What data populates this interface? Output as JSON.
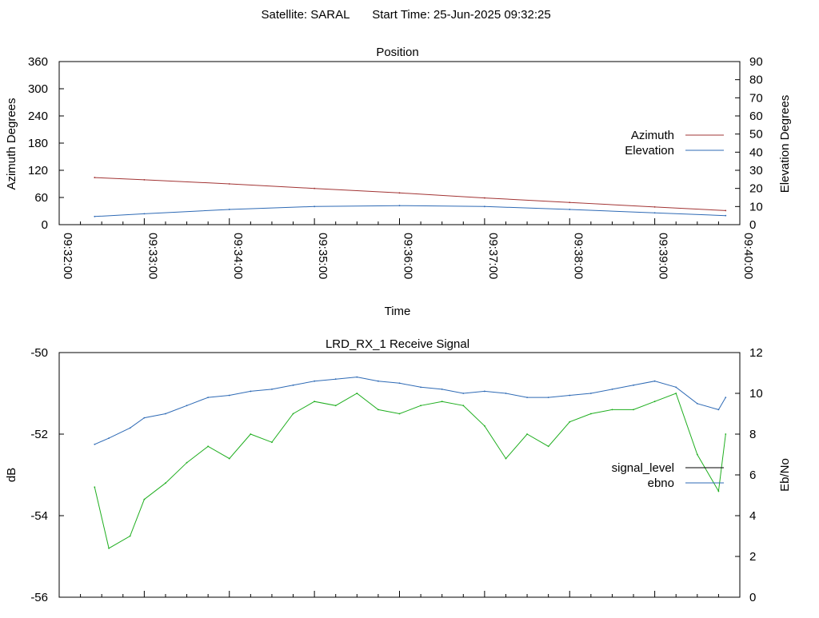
{
  "header": {
    "satellite_label": "Satellite: SARAL",
    "start_time_label": "Start Time: 25-Jun-2025 09:32:25"
  },
  "colors": {
    "azimuth": "#a23434",
    "elevation": "#2e6ab5",
    "signal_level": "#1fae1f",
    "ebno": "#2e6ab5",
    "axis": "#000000"
  },
  "chart_data": [
    {
      "id": "position",
      "type": "line",
      "title": "Position",
      "xlabel": "Time",
      "ylabel": "Azimuth Degrees",
      "y2label": "Elevation Degrees",
      "xlim": [
        "09:32:00",
        "09:40:00"
      ],
      "ylim": [
        0,
        360
      ],
      "y2lim": [
        0,
        90
      ],
      "x_ticks": [
        "09:32:00",
        "09:33:00",
        "09:34:00",
        "09:35:00",
        "09:36:00",
        "09:37:00",
        "09:38:00",
        "09:39:00",
        "09:40:00"
      ],
      "y_ticks": [
        0,
        60,
        120,
        180,
        240,
        300,
        360
      ],
      "y2_ticks": [
        0,
        10,
        20,
        30,
        40,
        50,
        60,
        70,
        80,
        90
      ],
      "legend_position": "right",
      "series": [
        {
          "name": "Azimuth",
          "axis": "y",
          "x": [
            "09:32:25",
            "09:33:00",
            "09:34:00",
            "09:35:00",
            "09:36:00",
            "09:37:00",
            "09:38:00",
            "09:39:00",
            "09:39:50"
          ],
          "values": [
            104,
            99,
            90,
            80,
            70,
            59,
            49,
            39,
            31
          ]
        },
        {
          "name": "Elevation",
          "axis": "y2",
          "x": [
            "09:32:25",
            "09:33:00",
            "09:34:00",
            "09:35:00",
            "09:36:00",
            "09:37:00",
            "09:38:00",
            "09:39:00",
            "09:39:50"
          ],
          "values": [
            4.5,
            6.0,
            8.4,
            10.0,
            10.5,
            10.0,
            8.4,
            6.5,
            5.0
          ]
        }
      ]
    },
    {
      "id": "signal",
      "type": "line",
      "title": "LRD_RX_1 Receive Signal",
      "xlabel": "",
      "ylabel": "dB",
      "y2label": "Eb/No",
      "xlim": [
        "09:32:00",
        "09:40:00"
      ],
      "ylim": [
        -56,
        -50
      ],
      "y2lim": [
        0,
        12
      ],
      "y_ticks": [
        -56,
        -54,
        -52,
        -50
      ],
      "y2_ticks": [
        0,
        2,
        4,
        6,
        8,
        10,
        12
      ],
      "legend_position": "right",
      "series": [
        {
          "name": "signal_level",
          "axis": "y",
          "x": [
            "09:32:25",
            "09:32:35",
            "09:32:50",
            "09:33:00",
            "09:33:15",
            "09:33:30",
            "09:33:45",
            "09:34:00",
            "09:34:15",
            "09:34:30",
            "09:34:45",
            "09:35:00",
            "09:35:15",
            "09:35:30",
            "09:35:45",
            "09:36:00",
            "09:36:15",
            "09:36:30",
            "09:36:45",
            "09:37:00",
            "09:37:15",
            "09:37:30",
            "09:37:45",
            "09:38:00",
            "09:38:15",
            "09:38:30",
            "09:38:45",
            "09:39:00",
            "09:39:15",
            "09:39:30",
            "09:39:45",
            "09:39:50"
          ],
          "values": [
            -53.3,
            -54.8,
            -54.5,
            -53.6,
            -53.2,
            -52.7,
            -52.3,
            -52.6,
            -52.0,
            -52.2,
            -51.5,
            -51.2,
            -51.3,
            -51.0,
            -51.4,
            -51.5,
            -51.3,
            -51.2,
            -51.3,
            -51.8,
            -52.6,
            -52.0,
            -52.3,
            -51.7,
            -51.5,
            -51.4,
            -51.4,
            -51.2,
            -51.0,
            -52.5,
            -53.4,
            -52.0
          ]
        },
        {
          "name": "ebno",
          "axis": "y2",
          "x": [
            "09:32:25",
            "09:32:35",
            "09:32:50",
            "09:33:00",
            "09:33:15",
            "09:33:30",
            "09:33:45",
            "09:34:00",
            "09:34:15",
            "09:34:30",
            "09:34:45",
            "09:35:00",
            "09:35:15",
            "09:35:30",
            "09:35:45",
            "09:36:00",
            "09:36:15",
            "09:36:30",
            "09:36:45",
            "09:37:00",
            "09:37:15",
            "09:37:30",
            "09:37:45",
            "09:38:00",
            "09:38:15",
            "09:38:30",
            "09:38:45",
            "09:39:00",
            "09:39:15",
            "09:39:30",
            "09:39:45",
            "09:39:50"
          ],
          "values": [
            7.5,
            7.8,
            8.3,
            8.8,
            9.0,
            9.4,
            9.8,
            9.9,
            10.1,
            10.2,
            10.4,
            10.6,
            10.7,
            10.8,
            10.6,
            10.5,
            10.3,
            10.2,
            10.0,
            10.1,
            10.0,
            9.8,
            9.8,
            9.9,
            10.0,
            10.2,
            10.4,
            10.6,
            10.3,
            9.5,
            9.2,
            9.8
          ]
        }
      ]
    }
  ]
}
